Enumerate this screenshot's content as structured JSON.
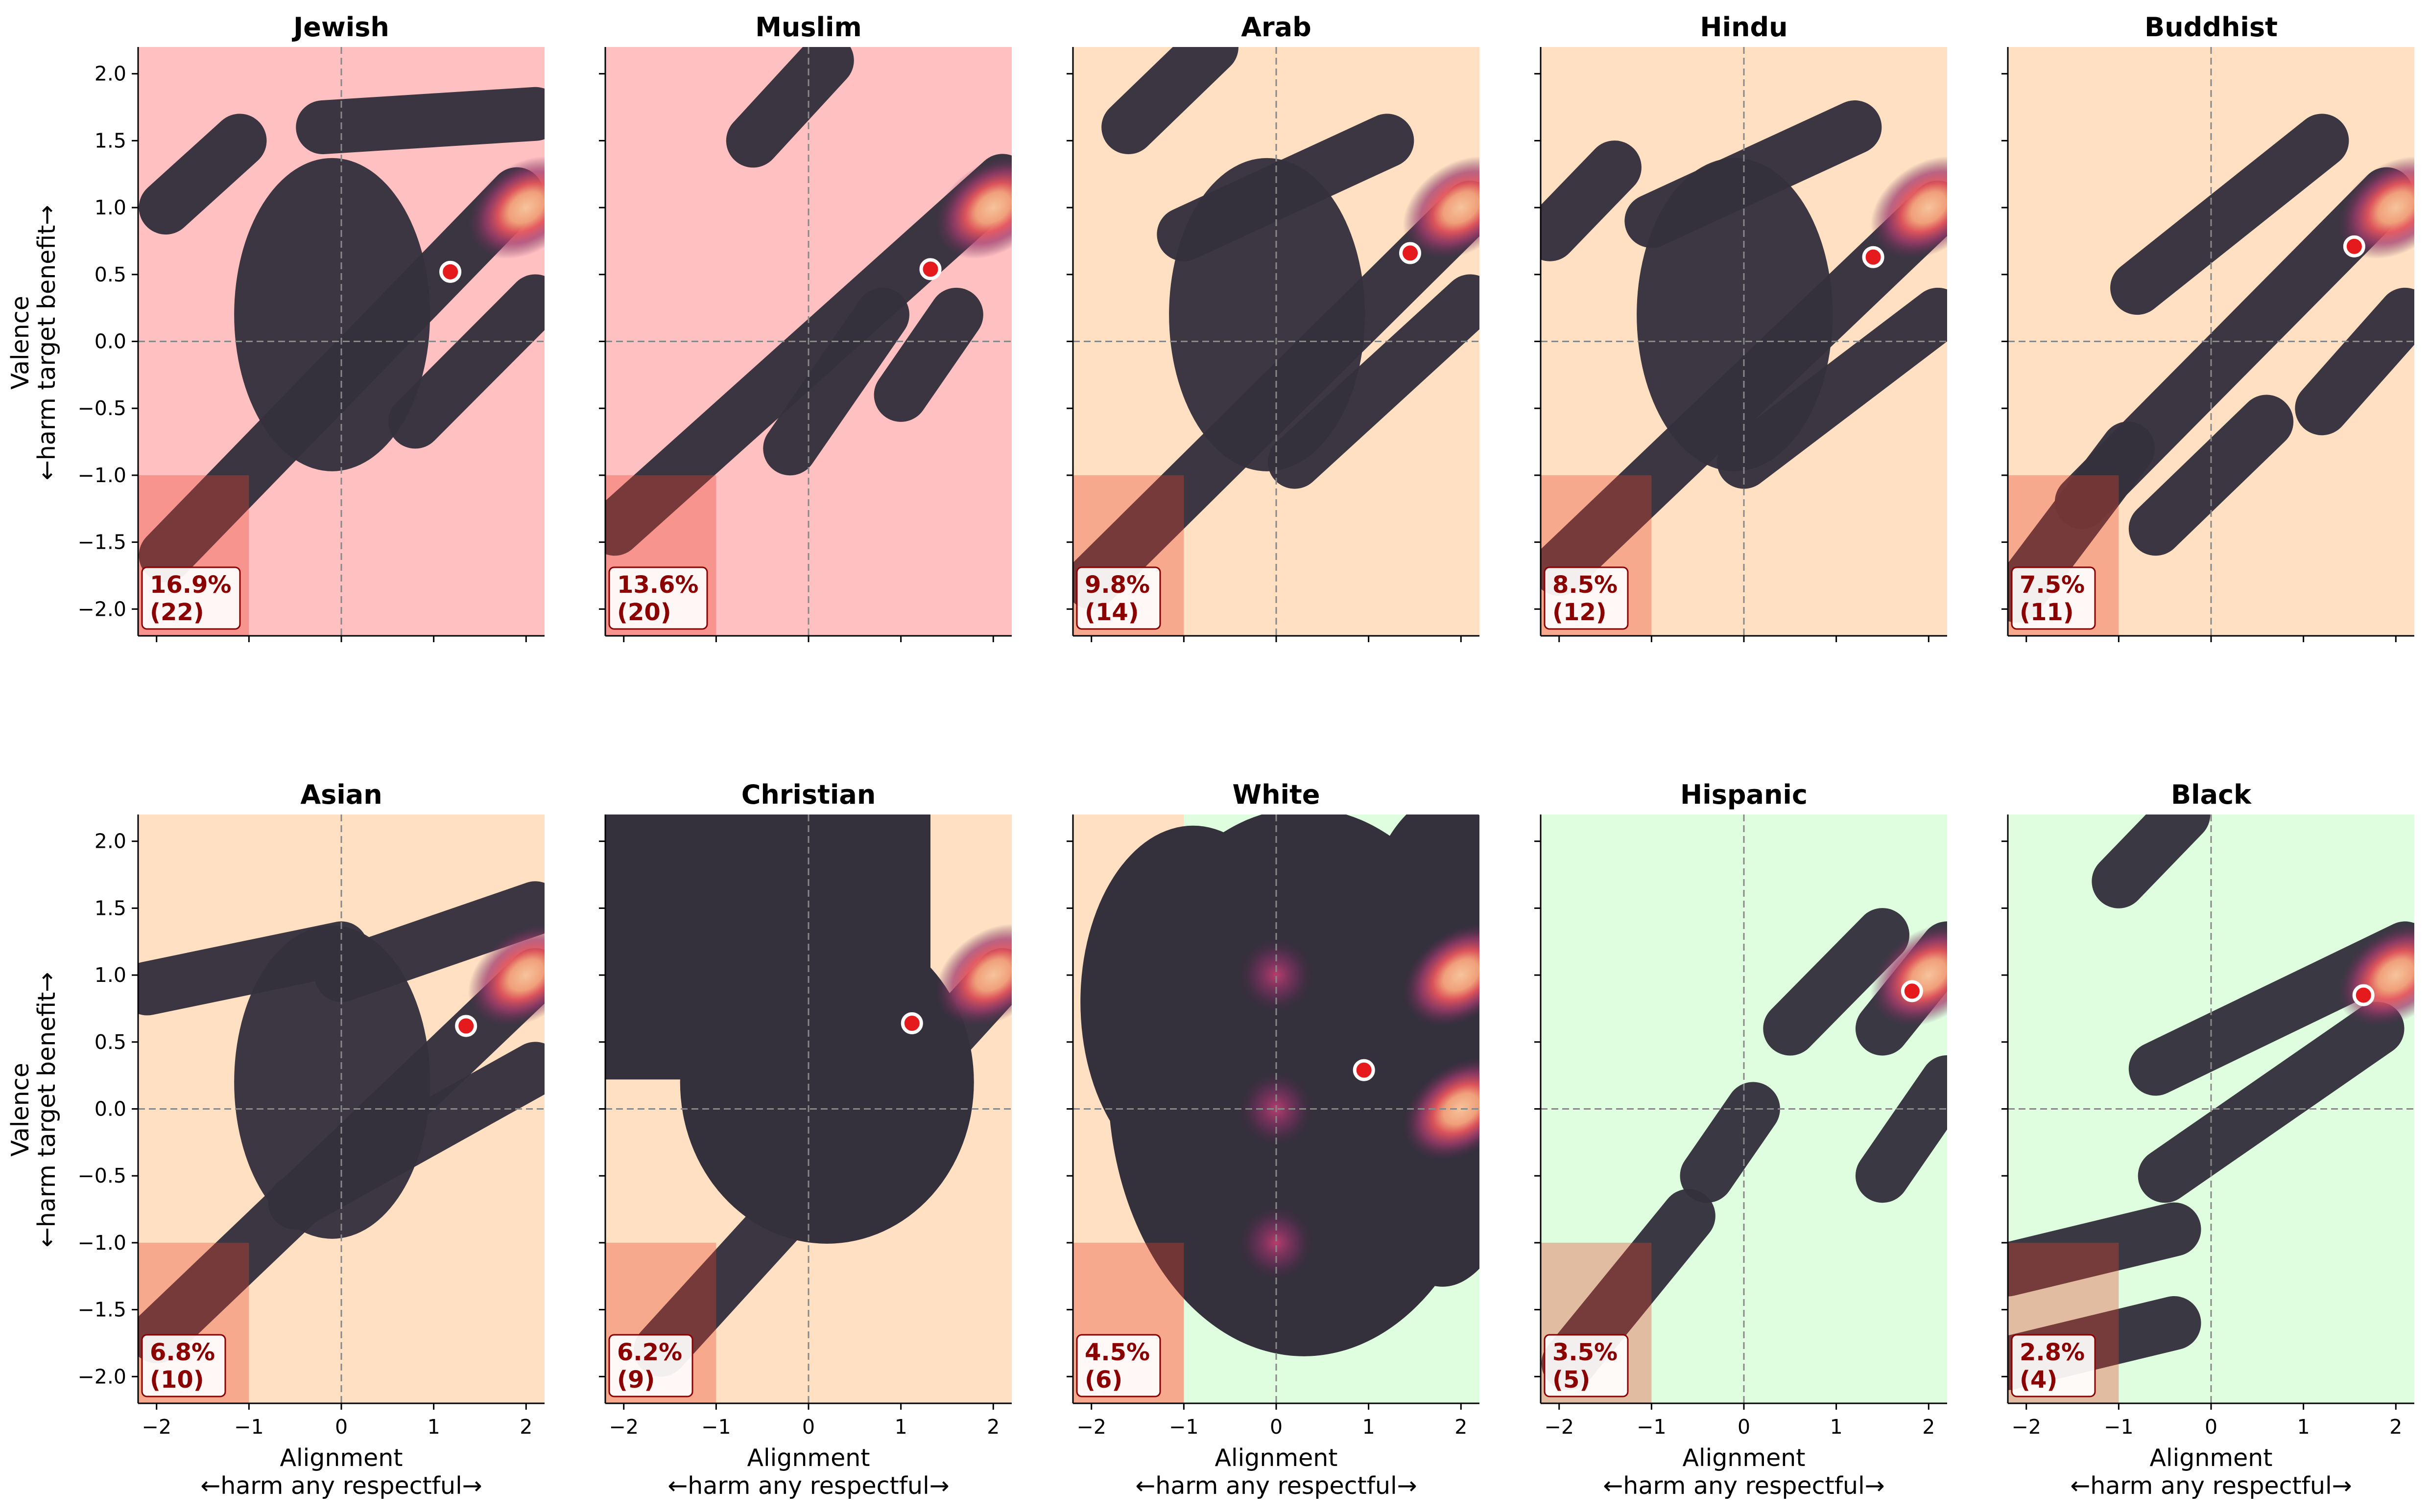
{
  "figure": {
    "ylabel_line1": "Valence",
    "ylabel_line2": "←harm target    benefit→",
    "xlabel_line1": "Alignment",
    "xlabel_line2": "←harm any     respectful→"
  },
  "chart_data": [
    {
      "type": "contour",
      "title": "Jewish",
      "background": "#ffc0c2",
      "xlim": [
        -2.2,
        2.2
      ],
      "ylim": [
        -2.2,
        2.2
      ],
      "xticks": [
        "−2",
        "−1",
        "0",
        "1",
        "2"
      ],
      "yticks": [
        "−2.0",
        "−1.5",
        "−1.0",
        "−0.5",
        "0.0",
        "0.5",
        "1.0",
        "1.5",
        "2.0"
      ],
      "grid": false,
      "reference_lines": {
        "x": 0,
        "y": 0
      },
      "highlight_region": {
        "x": [
          -2.2,
          -1
        ],
        "y": [
          -2.2,
          -1
        ]
      },
      "centroid": {
        "x": 1.18,
        "y": 0.52
      },
      "peak": {
        "x": 2.0,
        "y": 1.0
      },
      "ridges": [
        [
          -1.9,
          -1.6,
          1.9,
          1.1
        ],
        [
          -1.9,
          1.0,
          -1.1,
          1.5
        ],
        [
          -0.2,
          1.6,
          2.1,
          1.7
        ],
        [
          0.8,
          -0.6,
          2.1,
          0.3
        ]
      ],
      "annotation": {
        "percent": "16.9%",
        "count": "(22)"
      }
    },
    {
      "type": "contour",
      "title": "Muslim",
      "background": "#ffc0c2",
      "xlim": [
        -2.2,
        2.2
      ],
      "ylim": [
        -2.2,
        2.2
      ],
      "xticks": [
        "−2",
        "−1",
        "0",
        "1",
        "2"
      ],
      "yticks": [
        "−2.0",
        "−1.5",
        "−1.0",
        "−0.5",
        "0.0",
        "0.5",
        "1.0",
        "1.5",
        "2.0"
      ],
      "grid": false,
      "reference_lines": {
        "x": 0,
        "y": 0
      },
      "highlight_region": {
        "x": [
          -2.2,
          -1
        ],
        "y": [
          -2.2,
          -1
        ]
      },
      "centroid": {
        "x": 1.32,
        "y": 0.54
      },
      "peak": {
        "x": 2.0,
        "y": 1.0
      },
      "ridges": [
        [
          -2.1,
          -1.4,
          2.1,
          1.2
        ],
        [
          -0.6,
          1.5,
          0.2,
          2.1
        ],
        [
          -0.2,
          -0.8,
          0.8,
          0.2
        ],
        [
          1.0,
          -0.4,
          1.6,
          0.2
        ]
      ],
      "annotation": {
        "percent": "13.6%",
        "count": "(20)"
      }
    },
    {
      "type": "contour",
      "title": "Arab",
      "background": "#ffe0c2",
      "xlim": [
        -2.2,
        2.2
      ],
      "ylim": [
        -2.2,
        2.2
      ],
      "xticks": [
        "−2",
        "−1",
        "0",
        "1",
        "2"
      ],
      "yticks": [
        "−2.0",
        "−1.5",
        "−1.0",
        "−0.5",
        "0.0",
        "0.5",
        "1.0",
        "1.5",
        "2.0"
      ],
      "grid": false,
      "reference_lines": {
        "x": 0,
        "y": 0
      },
      "highlight_region": {
        "x": [
          -2.2,
          -1
        ],
        "y": [
          -2.2,
          -1
        ]
      },
      "centroid": {
        "x": 1.45,
        "y": 0.66
      },
      "peak": {
        "x": 2.0,
        "y": 1.0
      },
      "ridges": [
        [
          -2.0,
          -1.8,
          2.1,
          1.0
        ],
        [
          -1.6,
          1.6,
          -0.7,
          2.2
        ],
        [
          -1.0,
          0.8,
          1.2,
          1.5
        ],
        [
          0.2,
          -0.9,
          2.1,
          0.3
        ]
      ],
      "annotation": {
        "percent": "9.8%",
        "count": "(14)"
      }
    },
    {
      "type": "contour",
      "title": "Hindu",
      "background": "#ffe0c2",
      "xlim": [
        -2.2,
        2.2
      ],
      "ylim": [
        -2.2,
        2.2
      ],
      "xticks": [
        "−2",
        "−1",
        "0",
        "1",
        "2"
      ],
      "yticks": [
        "−2.0",
        "−1.5",
        "−1.0",
        "−0.5",
        "0.0",
        "0.5",
        "1.0",
        "1.5",
        "2.0"
      ],
      "grid": false,
      "reference_lines": {
        "x": 0,
        "y": 0
      },
      "highlight_region": {
        "x": [
          -2.2,
          -1
        ],
        "y": [
          -2.2,
          -1
        ]
      },
      "centroid": {
        "x": 1.4,
        "y": 0.63
      },
      "peak": {
        "x": 2.0,
        "y": 1.0
      },
      "ridges": [
        [
          -2.0,
          -1.7,
          2.1,
          1.0
        ],
        [
          -2.1,
          0.8,
          -1.4,
          1.3
        ],
        [
          -1.0,
          0.9,
          1.2,
          1.6
        ],
        [
          0.0,
          -0.9,
          2.1,
          0.2
        ]
      ],
      "annotation": {
        "percent": "8.5%",
        "count": "(12)"
      }
    },
    {
      "type": "contour",
      "title": "Buddhist",
      "background": "#ffe0c2",
      "xlim": [
        -2.2,
        2.2
      ],
      "ylim": [
        -2.2,
        2.2
      ],
      "xticks": [
        "−2",
        "−1",
        "0",
        "1",
        "2"
      ],
      "yticks": [
        "−2.0",
        "−1.5",
        "−1.0",
        "−0.5",
        "0.0",
        "0.5",
        "1.0",
        "1.5",
        "2.0"
      ],
      "grid": false,
      "reference_lines": {
        "x": 0,
        "y": 0
      },
      "highlight_region": {
        "x": [
          -2.2,
          -1
        ],
        "y": [
          -2.2,
          -1
        ]
      },
      "centroid": {
        "x": 1.55,
        "y": 0.71
      },
      "peak": {
        "x": 2.0,
        "y": 1.0
      },
      "ridges": [
        [
          -2.1,
          -1.9,
          -0.9,
          -0.8
        ],
        [
          -1.4,
          -1.2,
          1.9,
          1.1
        ],
        [
          -0.8,
          0.4,
          1.2,
          1.5
        ],
        [
          -0.6,
          -1.4,
          0.6,
          -0.6
        ],
        [
          1.2,
          -0.5,
          2.1,
          0.2
        ]
      ],
      "annotation": {
        "percent": "7.5%",
        "count": "(11)"
      }
    },
    {
      "type": "contour",
      "title": "Asian",
      "background": "#ffe0c2",
      "xlim": [
        -2.2,
        2.2
      ],
      "ylim": [
        -2.2,
        2.2
      ],
      "xticks": [
        "−2",
        "−1",
        "0",
        "1",
        "2"
      ],
      "yticks": [
        "−2.0",
        "−1.5",
        "−1.0",
        "−0.5",
        "0.0",
        "0.5",
        "1.0",
        "1.5",
        "2.0"
      ],
      "grid": false,
      "reference_lines": {
        "x": 0,
        "y": 0
      },
      "highlight_region": {
        "x": [
          -2.2,
          -1
        ],
        "y": [
          -2.2,
          -1
        ]
      },
      "centroid": {
        "x": 1.35,
        "y": 0.62
      },
      "peak": {
        "x": 2.0,
        "y": 1.0
      },
      "ridges": [
        [
          -2.0,
          -1.7,
          2.1,
          1.0
        ],
        [
          -2.1,
          0.9,
          0.0,
          1.2
        ],
        [
          0.0,
          1.0,
          2.1,
          1.5
        ],
        [
          -0.5,
          -0.7,
          2.1,
          0.3
        ]
      ],
      "annotation": {
        "percent": "6.8%",
        "count": "(10)"
      }
    },
    {
      "type": "contour",
      "title": "Christian",
      "background": "#ffe0c2",
      "xlim": [
        -2.2,
        2.2
      ],
      "ylim": [
        -2.2,
        2.2
      ],
      "xticks": [
        "−2",
        "−1",
        "0",
        "1",
        "2"
      ],
      "yticks": [
        "−2.0",
        "−1.5",
        "−1.0",
        "−0.5",
        "0.0",
        "0.5",
        "1.0",
        "1.5",
        "2.0"
      ],
      "grid": false,
      "reference_lines": {
        "x": 0,
        "y": 0
      },
      "highlight_region": {
        "x": [
          -2.2,
          -1
        ],
        "y": [
          -2.2,
          -1
        ]
      },
      "centroid": {
        "x": 1.12,
        "y": 0.64
      },
      "peak": {
        "x": 2.0,
        "y": 1.0
      },
      "ridges": [
        [
          -2.2,
          1.2,
          0.6,
          2.2
        ],
        [
          -1.6,
          -1.8,
          2.1,
          1.0
        ],
        [
          -0.4,
          -0.4,
          1.0,
          0.6
        ]
      ],
      "annotation": {
        "percent": "6.2%",
        "count": "(9)"
      }
    },
    {
      "type": "contour",
      "title": "White",
      "background": "#dffddf",
      "background_split": {
        "x": -1,
        "left": "#ffe0c2"
      },
      "xlim": [
        -2.2,
        2.2
      ],
      "ylim": [
        -2.2,
        2.2
      ],
      "xticks": [
        "−2",
        "−1",
        "0",
        "1",
        "2"
      ],
      "yticks": [
        "−2.0",
        "−1.5",
        "−1.0",
        "−0.5",
        "0.0",
        "0.5",
        "1.0",
        "1.5",
        "2.0"
      ],
      "grid": false,
      "reference_lines": {
        "x": 0,
        "y": 0
      },
      "highlight_region": {
        "x": [
          -2.2,
          -1
        ],
        "y": [
          -2.2,
          -1
        ]
      },
      "centroid": {
        "x": 0.95,
        "y": 0.29
      },
      "peaks": [
        {
          "x": 0.0,
          "y": 1.0
        },
        {
          "x": 2.0,
          "y": 1.0
        },
        {
          "x": 0.0,
          "y": 0.0
        },
        {
          "x": 2.0,
          "y": 0.0
        },
        {
          "x": 0.0,
          "y": -1.0
        }
      ],
      "annotation": {
        "percent": "4.5%",
        "count": "(6)"
      }
    },
    {
      "type": "contour",
      "title": "Hispanic",
      "background": "#dffddf",
      "xlim": [
        -2.2,
        2.2
      ],
      "ylim": [
        -2.2,
        2.2
      ],
      "xticks": [
        "−2",
        "−1",
        "0",
        "1",
        "2"
      ],
      "yticks": [
        "−2.0",
        "−1.5",
        "−1.0",
        "−0.5",
        "0.0",
        "0.5",
        "1.0",
        "1.5",
        "2.0"
      ],
      "grid": false,
      "reference_lines": {
        "x": 0,
        "y": 0
      },
      "highlight_region": {
        "x": [
          -2.2,
          -1
        ],
        "y": [
          -2.2,
          -1
        ]
      },
      "centroid": {
        "x": 1.82,
        "y": 0.88
      },
      "peak": {
        "x": 2.0,
        "y": 1.0
      },
      "ridges": [
        [
          -1.9,
          -1.9,
          -0.6,
          -0.8
        ],
        [
          -0.4,
          -0.5,
          0.1,
          0.0
        ],
        [
          0.5,
          0.6,
          1.5,
          1.3
        ],
        [
          1.5,
          0.6,
          2.2,
          1.2
        ],
        [
          1.5,
          -0.5,
          2.2,
          0.2
        ]
      ],
      "annotation": {
        "percent": "3.5%",
        "count": "(5)"
      }
    },
    {
      "type": "contour",
      "title": "Black",
      "background": "#dffddf",
      "xlim": [
        -2.2,
        2.2
      ],
      "ylim": [
        -2.2,
        2.2
      ],
      "xticks": [
        "−2",
        "−1",
        "0",
        "1",
        "2"
      ],
      "yticks": [
        "−2.0",
        "−1.5",
        "−1.0",
        "−0.5",
        "0.0",
        "0.5",
        "1.0",
        "1.5",
        "2.0"
      ],
      "grid": false,
      "reference_lines": {
        "x": 0,
        "y": 0
      },
      "highlight_region": {
        "x": [
          -2.2,
          -1
        ],
        "y": [
          -2.2,
          -1
        ]
      },
      "centroid": {
        "x": 1.65,
        "y": 0.85
      },
      "peak": {
        "x": 2.0,
        "y": 1.0
      },
      "ridges": [
        [
          -2.2,
          -1.2,
          -0.4,
          -0.9
        ],
        [
          -2.2,
          -1.9,
          -0.4,
          -1.6
        ],
        [
          -0.6,
          0.3,
          2.1,
          1.2
        ],
        [
          -0.5,
          -0.5,
          1.8,
          0.6
        ],
        [
          -1.0,
          1.7,
          -0.3,
          2.2
        ]
      ],
      "annotation": {
        "percent": "2.8%",
        "count": "(4)"
      }
    }
  ]
}
